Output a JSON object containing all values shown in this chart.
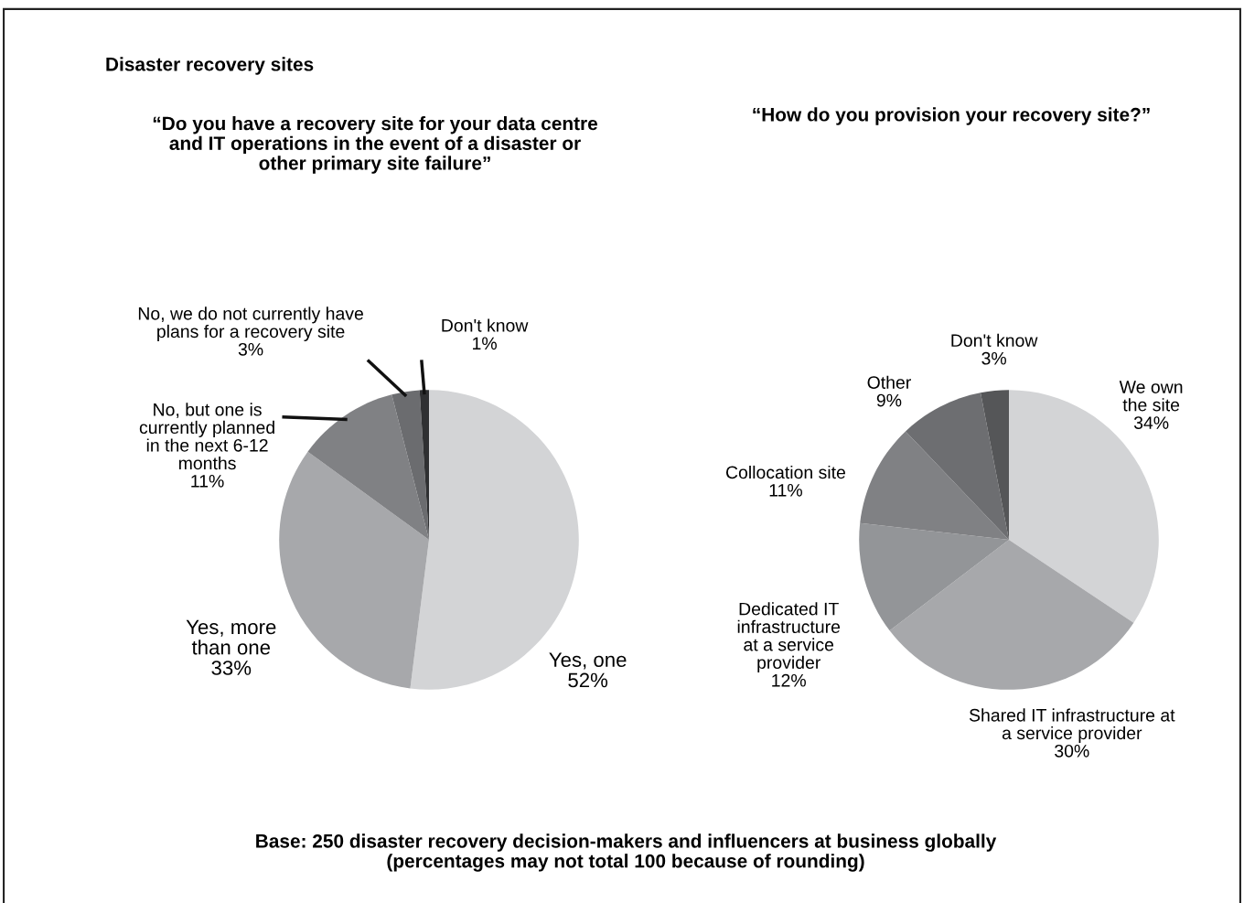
{
  "chart_data": [
    {
      "type": "pie",
      "title": "Disaster recovery sites",
      "subtitle": "“Do you have a recovery site for your data centre\nand IT operations in the event of a disaster or\nother primary site failure”",
      "categories": [
        "Yes, one",
        "Yes, more\nthan one",
        "No, but one is\ncurrently planned\nin the next 6-12\nmonths",
        "No, we do not currently have\nplans for a recovery site",
        "Don't know"
      ],
      "values": [
        52,
        33,
        11,
        3,
        1
      ],
      "value_labels": [
        "52%",
        "33%",
        "11%",
        "3%",
        "1%"
      ],
      "colors": [
        "#d3d4d6",
        "#a7a8ab",
        "#808184",
        "#6b6c6f",
        "#2f3032"
      ],
      "annotations": [
        "Base: 250 disaster recovery decision-makers and influencers at business globally\n(percentages may not total 100 because of rounding)"
      ]
    },
    {
      "type": "pie",
      "title": "“How do you provision your recovery site?”",
      "categories": [
        "We own\nthe site",
        "Shared IT infrastructure at\na service provider",
        "Dedicated IT\ninfrastructure\nat a service\nprovider",
        "Collocation site",
        "Other",
        "Don't know"
      ],
      "values": [
        34,
        30,
        12,
        11,
        9,
        3
      ],
      "value_labels": [
        "34%",
        "30%",
        "12%",
        "11%",
        "9%",
        "3%"
      ],
      "colors": [
        "#d3d4d6",
        "#a7a8ab",
        "#939598",
        "#808184",
        "#6d6e71",
        "#555658"
      ]
    }
  ]
}
